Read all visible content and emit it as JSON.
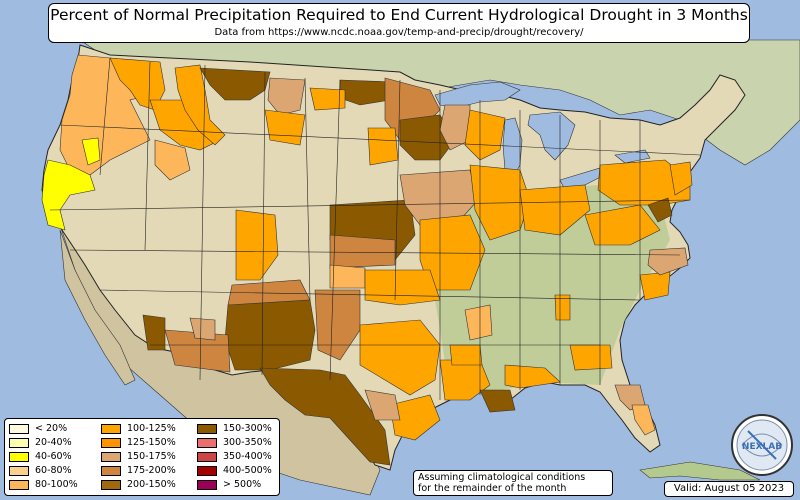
{
  "title": "Percent of Normal Precipitation Required to End Current Hydrological Drought in 3 Months",
  "subtitle": "Data from https://www.ncdc.noaa.gov/temp-and-precip/drought/recovery/",
  "note_line1": "Assuming climatological conditions",
  "note_line2": "for the remainder of the month",
  "valid": "Valid: August 05 2023",
  "logo_text": "NEXLAB",
  "legend": [
    {
      "label": "< 20%",
      "color": "#fffbe0"
    },
    {
      "label": "20-40%",
      "color": "#ffffb0"
    },
    {
      "label": "40-60%",
      "color": "#ffff00"
    },
    {
      "label": "60-80%",
      "color": "#fcd18f"
    },
    {
      "label": "80-100%",
      "color": "#fdb75a"
    },
    {
      "label": "100-125%",
      "color": "#ffa500"
    },
    {
      "label": "125-150%",
      "color": "#ff9400"
    },
    {
      "label": "150-175%",
      "color": "#dba672"
    },
    {
      "label": "175-200%",
      "color": "#cd853f"
    },
    {
      "label": "200-150%",
      "color": "#a0690f"
    },
    {
      "label": "150-300%",
      "color": "#8b5a00"
    },
    {
      "label": "300-350%",
      "color": "#ec6f6f"
    },
    {
      "label": "350-400%",
      "color": "#cd4545"
    },
    {
      "label": "400-500%",
      "color": "#a50000"
    },
    {
      "label": "> 500%",
      "color": "#9b0057"
    }
  ],
  "colors": {
    "ocean": "#9fbbe0",
    "land": "#e6dcc0",
    "vegetation": "#b4c98e",
    "border": "#000000"
  }
}
